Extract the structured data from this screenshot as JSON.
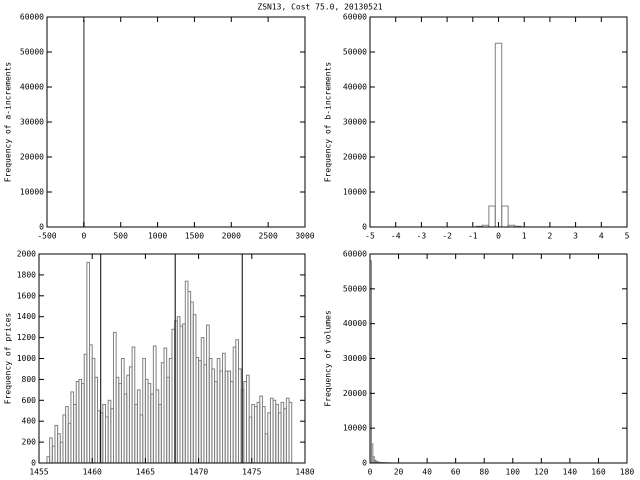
{
  "title": "ZSN13, Cost 75.0, 20130521",
  "chart_data": [
    {
      "type": "histogram",
      "ylabel": "Frequency of a-increments",
      "color": "#808080",
      "bins": [
        -5,
        5
      ],
      "values": [
        59000
      ],
      "xlim": [
        -500,
        3000
      ],
      "xticks": [
        -500,
        0,
        500,
        1000,
        1500,
        2000,
        2500,
        3000
      ],
      "ylim": [
        0,
        60000
      ],
      "yticks": [
        0,
        10000,
        20000,
        30000,
        40000,
        50000,
        60000
      ]
    },
    {
      "type": "histogram",
      "ylabel": "Frequency of b-increments",
      "color": "#808080",
      "bins": [
        -0.875,
        -0.625,
        -0.375,
        -0.125,
        0.125,
        0.375,
        0.625,
        0.875
      ],
      "values": [
        200,
        500,
        6000,
        52500,
        6000,
        500,
        200
      ],
      "xlim": [
        -5,
        5
      ],
      "xticks": [
        -5,
        -4,
        -3,
        -2,
        -1,
        0,
        1,
        2,
        3,
        4,
        5
      ],
      "ylim": [
        0,
        60000
      ],
      "yticks": [
        0,
        10000,
        20000,
        30000,
        40000,
        50000,
        60000
      ]
    },
    {
      "type": "histogram",
      "ylabel": "Frequency of prices",
      "color": "#808080",
      "vline_color": "#000000",
      "vlines": [
        1460.8,
        1467.8,
        1474.1
      ],
      "bins": [
        1455.75,
        1456,
        1456.25,
        1456.5,
        1456.75,
        1457,
        1457.25,
        1457.5,
        1457.75,
        1458,
        1458.25,
        1458.5,
        1458.75,
        1459,
        1459.25,
        1459.5,
        1459.75,
        1460,
        1460.25,
        1460.5,
        1460.75,
        1461,
        1461.25,
        1461.5,
        1461.75,
        1462,
        1462.25,
        1462.5,
        1462.75,
        1463,
        1463.25,
        1463.5,
        1463.75,
        1464,
        1464.25,
        1464.5,
        1464.75,
        1465,
        1465.25,
        1465.5,
        1465.75,
        1466,
        1466.25,
        1466.5,
        1466.75,
        1467,
        1467.25,
        1467.5,
        1467.75,
        1468,
        1468.25,
        1468.5,
        1468.75,
        1469,
        1469.25,
        1469.5,
        1469.75,
        1470,
        1470.25,
        1470.5,
        1470.75,
        1471,
        1471.25,
        1471.5,
        1471.75,
        1472,
        1472.25,
        1472.5,
        1472.75,
        1473,
        1473.25,
        1473.5,
        1473.75,
        1474,
        1474.25,
        1474.5,
        1474.75,
        1475,
        1475.25,
        1475.5,
        1475.75,
        1476,
        1476.25,
        1476.5,
        1476.75,
        1477,
        1477.25,
        1477.5,
        1477.75,
        1478,
        1478.25,
        1478.5,
        1478.75
      ],
      "values": [
        60,
        240,
        160,
        360,
        280,
        200,
        460,
        540,
        380,
        680,
        560,
        780,
        800,
        760,
        1040,
        1920,
        1130,
        1000,
        820,
        500,
        480,
        560,
        440,
        600,
        520,
        1250,
        820,
        760,
        1000,
        660,
        840,
        920,
        1110,
        560,
        700,
        460,
        1000,
        800,
        760,
        660,
        1120,
        700,
        560,
        960,
        1100,
        820,
        1000,
        1280,
        1360,
        1400,
        1310,
        1330,
        1740,
        1640,
        1540,
        1420,
        1010,
        980,
        1200,
        940,
        1320,
        1000,
        900,
        780,
        1000,
        880,
        1050,
        880,
        880,
        780,
        1110,
        1180,
        900,
        700,
        780,
        840,
        440,
        560,
        540,
        580,
        640,
        540,
        280,
        480,
        620,
        600,
        560,
        480,
        580,
        520,
        620,
        580
      ],
      "xlim": [
        1455,
        1480
      ],
      "xticks": [
        1455,
        1460,
        1465,
        1470,
        1475,
        1480
      ],
      "ylim": [
        0,
        2000
      ],
      "yticks": [
        0,
        200,
        400,
        600,
        800,
        1000,
        1200,
        1400,
        1600,
        1800,
        2000
      ]
    },
    {
      "type": "histogram",
      "ylabel": "Frequency of volumes",
      "color": "#808080",
      "bins": [
        0,
        1,
        2,
        3,
        4,
        5,
        6,
        7,
        8,
        9,
        10,
        11,
        12,
        13,
        14,
        15
      ],
      "values": [
        58000,
        5500,
        1800,
        800,
        500,
        300,
        200,
        150,
        100,
        80,
        60,
        50,
        40,
        30,
        20
      ],
      "xlim": [
        0,
        180
      ],
      "xticks": [
        0,
        20,
        40,
        60,
        80,
        100,
        120,
        140,
        160,
        180
      ],
      "ylim": [
        0,
        60000
      ],
      "yticks": [
        0,
        10000,
        20000,
        30000,
        40000,
        50000,
        60000
      ]
    }
  ]
}
